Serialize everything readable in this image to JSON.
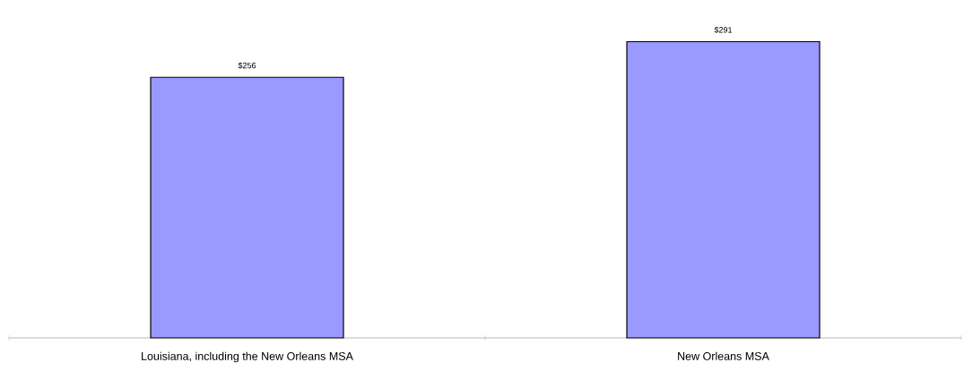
{
  "chart_data": {
    "type": "bar",
    "categories": [
      "Louisiana, including the New Orleans MSA",
      "New Orleans MSA"
    ],
    "values": [
      256,
      291
    ],
    "value_labels": [
      "$256",
      "$291"
    ],
    "color": "#9999ff"
  }
}
